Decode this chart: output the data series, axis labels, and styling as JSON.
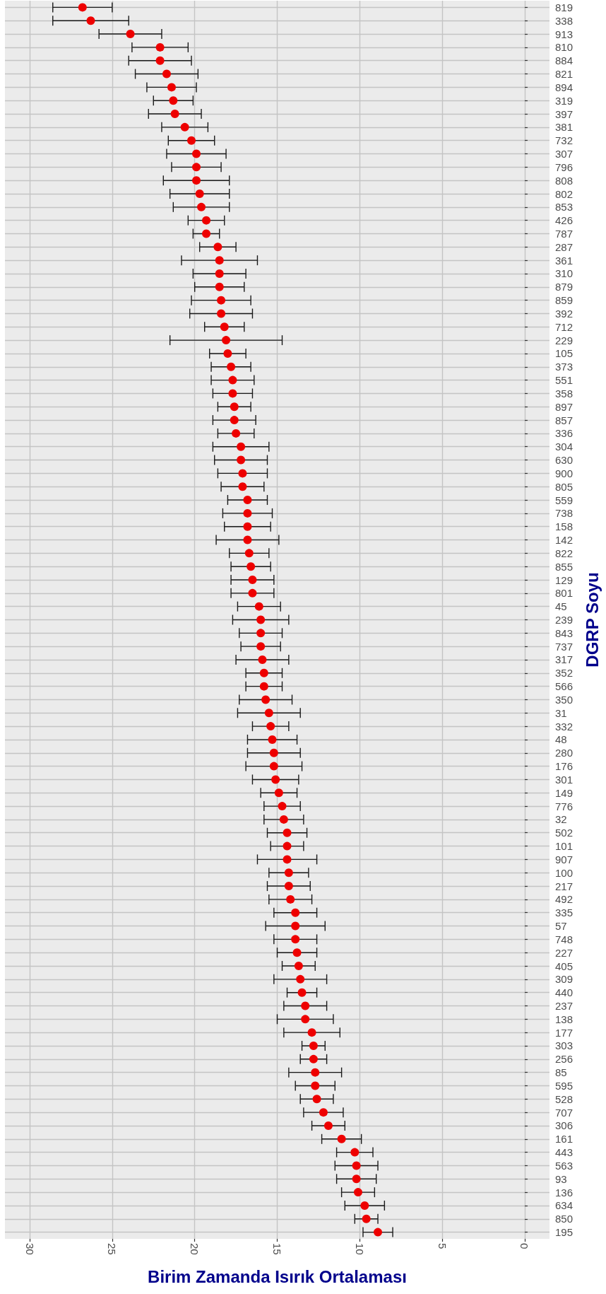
{
  "chart_data": {
    "type": "scatter",
    "orientation": "horizontal",
    "xlabel": "Birim Zamanda Isırık Ortalaması",
    "ylabel": "DGRP Soyu",
    "categories": [
      "819",
      "338",
      "913",
      "810",
      "884",
      "821",
      "894",
      "319",
      "397",
      "381",
      "732",
      "307",
      "796",
      "808",
      "802",
      "853",
      "426",
      "787",
      "287",
      "361",
      "310",
      "879",
      "859",
      "392",
      "712",
      "229",
      "105",
      "373",
      "551",
      "358",
      "897",
      "857",
      "336",
      "304",
      "630",
      "900",
      "805",
      "559",
      "738",
      "158",
      "142",
      "822",
      "855",
      "129",
      "801",
      "45",
      "239",
      "843",
      "737",
      "317",
      "352",
      "566",
      "350",
      "31",
      "332",
      "48",
      "280",
      "176",
      "301",
      "149",
      "776",
      "32",
      "502",
      "101",
      "907",
      "100",
      "217",
      "492",
      "335",
      "57",
      "748",
      "227",
      "405",
      "309",
      "440",
      "237",
      "138",
      "177",
      "303",
      "256",
      "85",
      "595",
      "528",
      "707",
      "306",
      "161",
      "443",
      "563",
      "93",
      "136",
      "634",
      "850",
      "195"
    ],
    "values": [
      26.8,
      26.3,
      23.9,
      22.1,
      22.1,
      21.7,
      21.4,
      21.3,
      21.2,
      20.6,
      20.2,
      19.9,
      19.9,
      19.9,
      19.7,
      19.6,
      19.3,
      19.3,
      18.6,
      18.5,
      18.5,
      18.5,
      18.4,
      18.4,
      18.2,
      18.1,
      18.0,
      17.8,
      17.7,
      17.7,
      17.6,
      17.6,
      17.5,
      17.2,
      17.2,
      17.1,
      17.1,
      16.8,
      16.8,
      16.8,
      16.8,
      16.7,
      16.6,
      16.5,
      16.5,
      16.1,
      16.0,
      16.0,
      16.0,
      15.9,
      15.8,
      15.8,
      15.7,
      15.5,
      15.4,
      15.3,
      15.2,
      15.2,
      15.1,
      14.9,
      14.7,
      14.6,
      14.4,
      14.4,
      14.4,
      14.3,
      14.3,
      14.2,
      13.9,
      13.9,
      13.9,
      13.8,
      13.7,
      13.6,
      13.5,
      13.3,
      13.3,
      12.9,
      12.8,
      12.8,
      12.7,
      12.7,
      12.6,
      12.2,
      11.9,
      11.1,
      10.3,
      10.2,
      10.2,
      10.1,
      9.7,
      9.6,
      8.9
    ],
    "errors": [
      1.8,
      2.3,
      1.9,
      1.7,
      1.9,
      1.9,
      1.5,
      1.2,
      1.6,
      1.4,
      1.4,
      1.8,
      1.5,
      2.0,
      1.8,
      1.7,
      1.1,
      0.8,
      1.1,
      2.3,
      1.6,
      1.5,
      1.8,
      1.9,
      1.2,
      3.4,
      1.1,
      1.2,
      1.3,
      1.2,
      1.0,
      1.3,
      1.1,
      1.7,
      1.6,
      1.5,
      1.3,
      1.2,
      1.5,
      1.4,
      1.9,
      1.2,
      1.2,
      1.3,
      1.3,
      1.3,
      1.7,
      1.3,
      1.2,
      1.6,
      1.1,
      1.1,
      1.6,
      1.9,
      1.1,
      1.5,
      1.6,
      1.7,
      1.4,
      1.1,
      1.1,
      1.2,
      1.2,
      1.0,
      1.8,
      1.2,
      1.3,
      1.3,
      1.3,
      1.8,
      1.3,
      1.2,
      1.0,
      1.6,
      0.9,
      1.3,
      1.7,
      1.7,
      0.7,
      0.8,
      1.6,
      1.2,
      1.0,
      1.2,
      1.0,
      1.2,
      1.1,
      1.3,
      1.2,
      1.0,
      1.2,
      0.7,
      0.9
    ],
    "color": "#ee0000",
    "marker": "circle",
    "xlim": [
      31.5,
      -1.5
    ],
    "xticks": [
      0,
      5,
      10,
      15,
      20,
      25,
      30
    ],
    "grid": true
  }
}
